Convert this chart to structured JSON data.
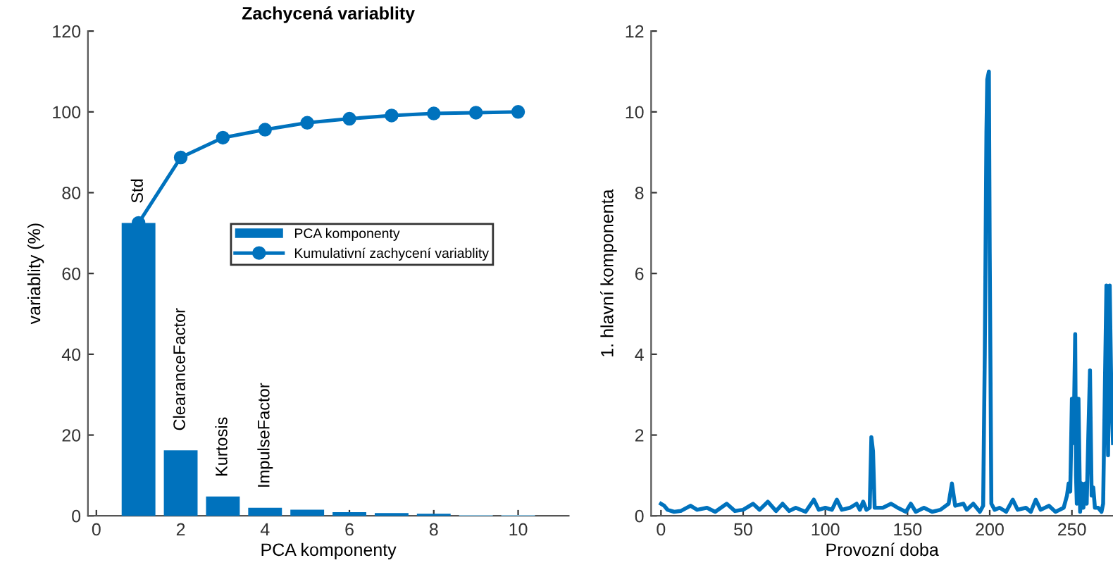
{
  "chart_data": [
    {
      "type": "bar",
      "title": "Zachycená variablity",
      "xlabel": "PCA komponenty",
      "ylabel": "variablity (%)",
      "x": [
        1,
        2,
        3,
        4,
        5,
        6,
        7,
        8,
        9,
        10
      ],
      "series": [
        {
          "name": "PCA komponenty",
          "type": "bar",
          "color": "#0072bd",
          "colors": [
            "#0072bd",
            "#0072bd",
            "#0072bd",
            "#0072bd",
            "#0072bd",
            "#0072bd",
            "#0072bd",
            "#0072bd",
            "#8cc8e8",
            "#8cc8e8"
          ],
          "values": [
            72.5,
            16.2,
            4.8,
            2.0,
            1.5,
            0.9,
            0.7,
            0.5,
            0.2,
            0.2
          ]
        },
        {
          "name": "Kumulativní zachycení variablity",
          "type": "line",
          "color": "#0072bd",
          "marker": "circle",
          "values": [
            72.5,
            88.7,
            93.6,
            95.6,
            97.3,
            98.3,
            99.1,
            99.6,
            99.8,
            100
          ]
        }
      ],
      "annotations": [
        {
          "text": "Std",
          "x": 1,
          "y": 72.5
        },
        {
          "text": "ClearanceFactor",
          "x": 2,
          "y": 16.2
        },
        {
          "text": "Kurtosis",
          "x": 3,
          "y": 4.8
        },
        {
          "text": "ImpulseFactor",
          "x": 4,
          "y": 2.0
        }
      ],
      "xlim": [
        -0.2,
        11.2
      ],
      "ylim": [
        0,
        120
      ],
      "xticks": [
        0,
        2,
        4,
        6,
        8,
        10
      ],
      "yticks": [
        0,
        20,
        40,
        60,
        80,
        100,
        120
      ],
      "legend": "center",
      "grid": false
    },
    {
      "type": "line",
      "xlabel": "Provozní doba",
      "ylabel": "1. hlavní komponenta",
      "series": [
        {
          "color": "#0072bd",
          "x": [
            0,
            2,
            4,
            8,
            12,
            18,
            22,
            28,
            33,
            40,
            45,
            50,
            56,
            60,
            65,
            70,
            74,
            78,
            82,
            88,
            93,
            96,
            100,
            104,
            107,
            110,
            115,
            119,
            121,
            123,
            125,
            127,
            128,
            129,
            130,
            135,
            140,
            144,
            149,
            152,
            155,
            160,
            165,
            170,
            175,
            177,
            179,
            184,
            186,
            190,
            194,
            196,
            197,
            198,
            198.5,
            199.5,
            200,
            201,
            203,
            206,
            210,
            214,
            217,
            222,
            225,
            228,
            231,
            236,
            240,
            245,
            247,
            248,
            249,
            250,
            251,
            252,
            252.5,
            253,
            254,
            255,
            256,
            257,
            258,
            259,
            260,
            261,
            262,
            263,
            264,
            266,
            268,
            269,
            270,
            271,
            272,
            273,
            274,
            275
          ],
          "values": [
            0.3,
            0.25,
            0.15,
            0.1,
            0.12,
            0.25,
            0.15,
            0.2,
            0.1,
            0.3,
            0.12,
            0.15,
            0.3,
            0.15,
            0.35,
            0.12,
            0.3,
            0.12,
            0.2,
            0.1,
            0.4,
            0.15,
            0.2,
            0.15,
            0.4,
            0.15,
            0.2,
            0.3,
            0.15,
            0.35,
            0.15,
            0.2,
            1.95,
            1.6,
            0.2,
            0.2,
            0.3,
            0.2,
            0.1,
            0.3,
            0.1,
            0.2,
            0.1,
            0.15,
            0.3,
            0.8,
            0.25,
            0.3,
            0.15,
            0.3,
            0.1,
            0.25,
            4.0,
            9.5,
            10.8,
            11.0,
            6.5,
            0.3,
            0.15,
            0.2,
            0.1,
            0.4,
            0.15,
            0.2,
            0.1,
            0.4,
            0.15,
            0.25,
            0.1,
            0.2,
            0.5,
            0.8,
            0.6,
            2.9,
            1.8,
            4.5,
            1.0,
            0.3,
            2.9,
            0.1,
            0.8,
            0.2,
            0.8,
            0.3,
            2.0,
            3.6,
            0.5,
            0.7,
            0.2,
            0.2,
            0.1,
            0.3,
            3.0,
            5.7,
            1.5,
            5.7,
            3.0,
            1.8
          ]
        }
      ],
      "xlim": [
        -6,
        275
      ],
      "ylim": [
        0,
        12
      ],
      "xticks": [
        0,
        50,
        100,
        150,
        200,
        250
      ],
      "yticks": [
        0,
        2,
        4,
        6,
        8,
        10,
        12
      ],
      "grid": false
    }
  ]
}
